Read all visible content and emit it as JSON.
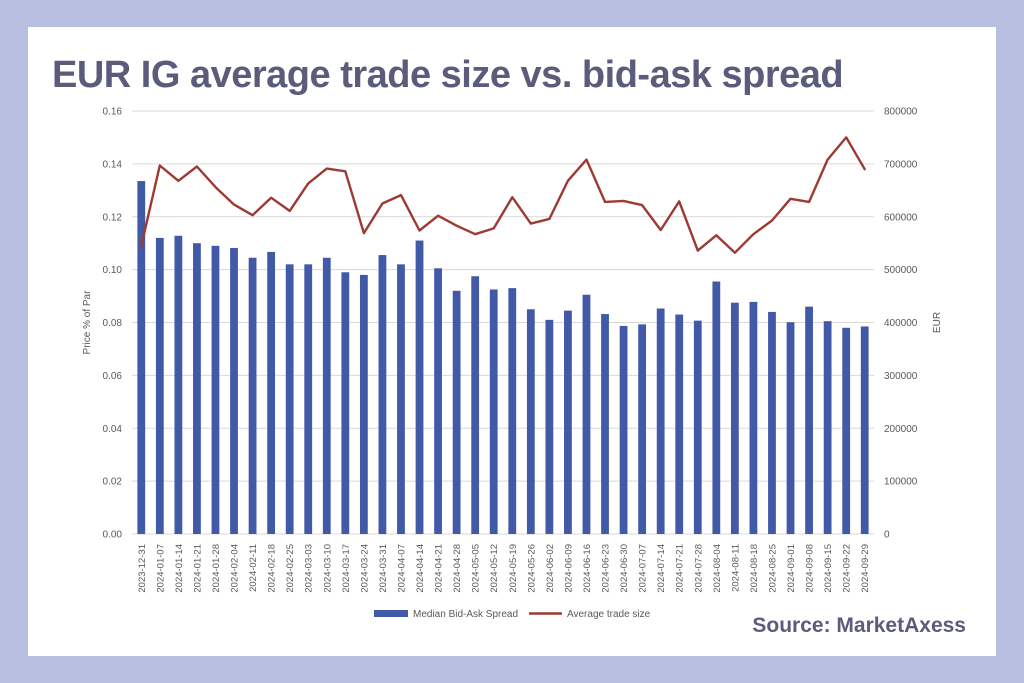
{
  "header": {
    "title": "EUR IG average trade size vs. bid-ask spread",
    "source": "Source: MarketAxess"
  },
  "colors": {
    "background": "#b7bee0",
    "panel": "#ffffff",
    "title": "#5b5c7c",
    "bar": "#4159a6",
    "line": "#9c3a33"
  },
  "chart_data": {
    "type": "bar",
    "title": "EUR IG average trade size vs. bid-ask spread",
    "ylabel": "Price % of Par",
    "y2label": "EUR",
    "ylim": [
      0,
      0.16
    ],
    "y2lim": [
      0,
      800000
    ],
    "yticks": [
      "0.00",
      "0.02",
      "0.04",
      "0.06",
      "0.08",
      "0.10",
      "0.12",
      "0.14",
      "0.16"
    ],
    "y2ticks": [
      "0",
      "100000",
      "200000",
      "300000",
      "400000",
      "500000",
      "600000",
      "700000",
      "800000"
    ],
    "grid": true,
    "legend_position": "bottom",
    "categories": [
      "2023-12-31",
      "2024-01-07",
      "2024-01-14",
      "2024-01-21",
      "2024-01-28",
      "2024-02-04",
      "2024-02-11",
      "2024-02-18",
      "2024-02-25",
      "2024-03-03",
      "2024-03-10",
      "2024-03-17",
      "2024-03-24",
      "2024-03-31",
      "2024-04-07",
      "2024-04-14",
      "2024-04-21",
      "2024-04-28",
      "2024-05-05",
      "2024-05-12",
      "2024-05-19",
      "2024-05-26",
      "2024-06-02",
      "2024-06-09",
      "2024-06-16",
      "2024-06-23",
      "2024-06-30",
      "2024-07-07",
      "2024-07-14",
      "2024-07-21",
      "2024-07-28",
      "2024-08-04",
      "2024-08-11",
      "2024-08-18",
      "2024-08-25",
      "2024-09-01",
      "2024-09-08",
      "2024-09-15",
      "2024-09-22",
      "2024-09-29"
    ],
    "series": [
      {
        "name": "Median Bid-Ask Spread",
        "type": "bar",
        "axis": "left",
        "color": "#4159a6",
        "values": [
          0.1335,
          0.112,
          0.1128,
          0.11,
          0.109,
          0.1082,
          0.1045,
          0.1067,
          0.102,
          0.102,
          0.1045,
          0.099,
          0.098,
          0.1055,
          0.102,
          0.111,
          0.1005,
          0.092,
          0.0975,
          0.0925,
          0.093,
          0.085,
          0.081,
          0.0845,
          0.0905,
          0.0832,
          0.0787,
          0.0793,
          0.0853,
          0.083,
          0.0807,
          0.0955,
          0.0875,
          0.0878,
          0.084,
          0.0801,
          0.086,
          0.0805,
          0.078,
          0.0785
        ]
      },
      {
        "name": "Average trade size",
        "type": "line",
        "axis": "right",
        "color": "#9c3a33",
        "values": [
          545000,
          697000,
          668000,
          695000,
          656000,
          623000,
          603000,
          636000,
          611000,
          663000,
          691000,
          686000,
          569000,
          625000,
          641000,
          574000,
          602000,
          583000,
          567000,
          578000,
          637000,
          587000,
          596000,
          668000,
          708000,
          628000,
          630000,
          622000,
          575000,
          629000,
          536000,
          565000,
          532000,
          567000,
          593000,
          634000,
          628000,
          708000,
          750000,
          690000
        ]
      }
    ]
  }
}
